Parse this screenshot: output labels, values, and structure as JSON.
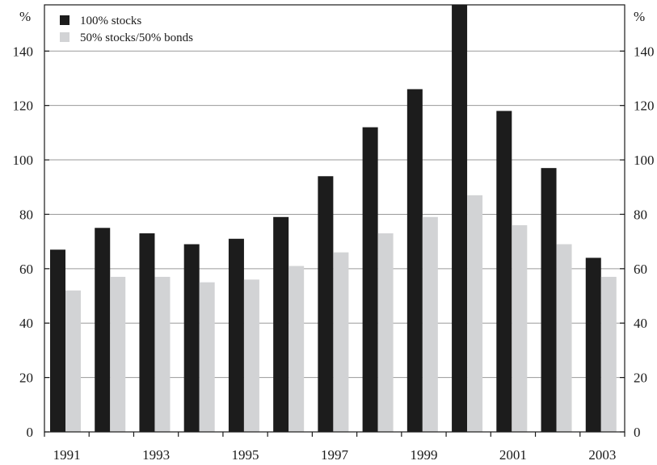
{
  "chart_data": {
    "type": "bar",
    "title": "",
    "xlabel": "",
    "ylabel": "%",
    "ylabel_right": "%",
    "ylim": [
      0,
      157
    ],
    "y_ticks": [
      0,
      20,
      40,
      60,
      80,
      100,
      120,
      140
    ],
    "categories": [
      "1991",
      "1992",
      "1993",
      "1994",
      "1995",
      "1996",
      "1997",
      "1998",
      "1999",
      "2000",
      "2001",
      "2002",
      "2003"
    ],
    "x_tick_labels": [
      "1991",
      "",
      "1993",
      "",
      "1995",
      "",
      "1997",
      "",
      "1999",
      "",
      "2001",
      "",
      "2003"
    ],
    "grid": "horizontal",
    "legend_position": "top-left",
    "series": [
      {
        "name": "100% stocks",
        "color": "#1c1c1c",
        "values": [
          67,
          75,
          73,
          69,
          71,
          79,
          94,
          112,
          126,
          157,
          118,
          97,
          64
        ]
      },
      {
        "name": "50% stocks/50% bonds",
        "color": "#d2d3d5",
        "values": [
          52,
          57,
          57,
          55,
          56,
          61,
          66,
          73,
          79,
          87,
          76,
          69,
          57
        ]
      }
    ]
  }
}
